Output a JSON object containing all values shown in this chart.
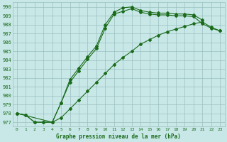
{
  "x_label": "Graphe pression niveau de la mer (hPa)",
  "line1_x": [
    0,
    1,
    2,
    3,
    4,
    5,
    6,
    7,
    8,
    9,
    10,
    11,
    12,
    13,
    14,
    15,
    16,
    17,
    18,
    19,
    20,
    21,
    22,
    23
  ],
  "line1_y": [
    978.0,
    977.8,
    977.0,
    977.0,
    977.0,
    979.2,
    981.5,
    982.8,
    984.1,
    985.3,
    987.6,
    989.2,
    989.5,
    989.8,
    989.4,
    989.2,
    989.1,
    989.1,
    989.0,
    989.0,
    988.9,
    988.1,
    987.6,
    987.3
  ],
  "line2_x": [
    0,
    1,
    2,
    3,
    4,
    5,
    6,
    7,
    8,
    9,
    10,
    11,
    12,
    13,
    14,
    15,
    16,
    17,
    18,
    19,
    20,
    21
  ],
  "line2_y": [
    978.0,
    977.8,
    977.0,
    977.0,
    977.0,
    979.2,
    981.8,
    983.1,
    984.4,
    985.6,
    988.0,
    989.4,
    989.9,
    990.0,
    989.6,
    989.4,
    989.3,
    989.3,
    989.2,
    989.2,
    989.1,
    988.5
  ],
  "line3_x": [
    0,
    4,
    5,
    6,
    7,
    8,
    9,
    10,
    11,
    12,
    13,
    14,
    15,
    16,
    17,
    18,
    19,
    20,
    21,
    22,
    23
  ],
  "line3_y": [
    978.0,
    977.0,
    977.5,
    978.5,
    979.5,
    980.5,
    981.5,
    982.5,
    983.5,
    984.3,
    985.0,
    985.8,
    986.3,
    986.8,
    987.2,
    987.5,
    987.8,
    988.1,
    988.3,
    987.7,
    987.3
  ],
  "line_color": "#1a6b1a",
  "bg_color": "#c8e8e8",
  "grid_color": "#9bbfbf",
  "ylim": [
    976.5,
    990.5
  ],
  "yticks": [
    977,
    978,
    979,
    980,
    981,
    982,
    983,
    984,
    985,
    986,
    987,
    988,
    989,
    990
  ],
  "xticks": [
    0,
    1,
    2,
    3,
    4,
    5,
    6,
    7,
    8,
    9,
    10,
    11,
    12,
    13,
    14,
    15,
    16,
    17,
    18,
    19,
    20,
    21,
    22,
    23
  ],
  "xlim": [
    -0.5,
    23.5
  ]
}
